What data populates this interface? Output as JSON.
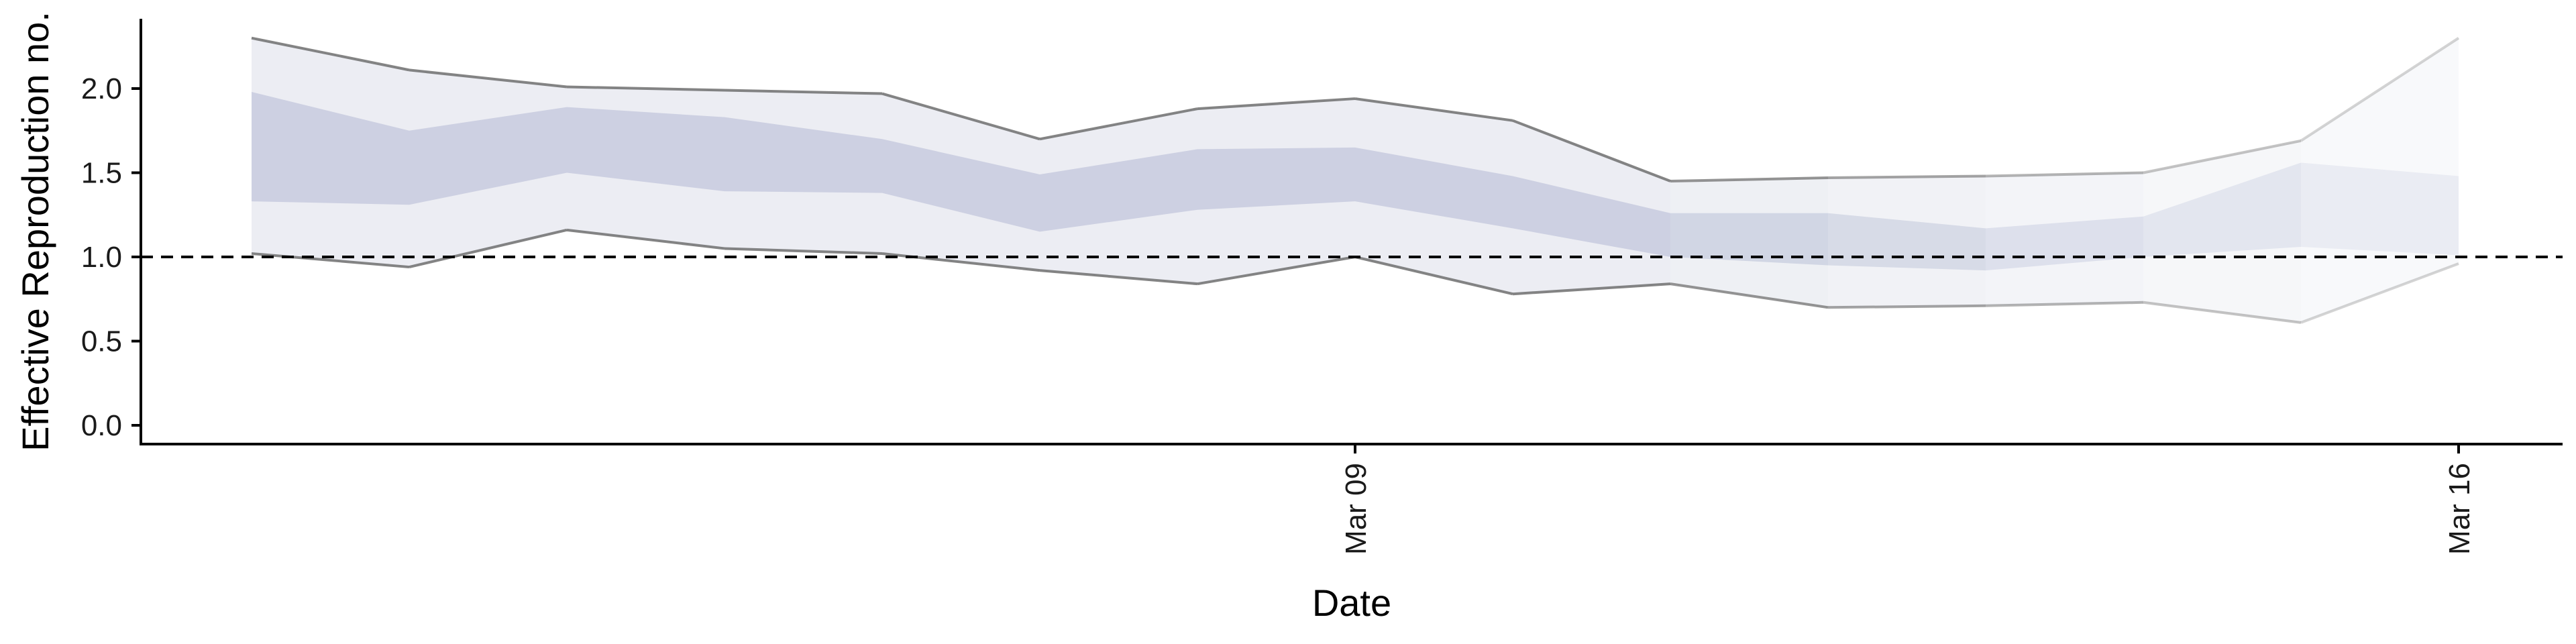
{
  "chart_data": {
    "type": "area",
    "title": "",
    "xlabel": "Date",
    "ylabel": "Effective Reproduction no.",
    "ylim": [
      -0.1,
      2.4
    ],
    "yticks": [
      0.0,
      0.5,
      1.0,
      1.5,
      2.0
    ],
    "ytick_labels": [
      "0.0",
      "0.5",
      "1.0",
      "1.5",
      "2.0"
    ],
    "xticks": [
      {
        "date": "2020-03-09",
        "label": "Mar 09"
      },
      {
        "date": "2020-03-16",
        "label": "Mar 16"
      }
    ],
    "reference_line": {
      "y": 1.0,
      "style": "dashed"
    },
    "dates": [
      "2020-03-02",
      "2020-03-03",
      "2020-03-04",
      "2020-03-05",
      "2020-03-06",
      "2020-03-07",
      "2020-03-08",
      "2020-03-09",
      "2020-03-10",
      "2020-03-11",
      "2020-03-12",
      "2020-03-13",
      "2020-03-14",
      "2020-03-15",
      "2020-03-16"
    ],
    "outer_band": {
      "upper": [
        2.3,
        2.11,
        2.01,
        1.99,
        1.97,
        1.7,
        1.88,
        1.94,
        1.81,
        1.45,
        1.47,
        1.48,
        1.5,
        1.69,
        2.3
      ],
      "lower": [
        1.02,
        0.94,
        1.16,
        1.05,
        1.02,
        0.92,
        0.84,
        1.0,
        0.78,
        0.84,
        0.7,
        0.71,
        0.73,
        0.61,
        0.96
      ]
    },
    "inner_band": {
      "upper": [
        1.98,
        1.75,
        1.89,
        1.83,
        1.7,
        1.49,
        1.64,
        1.65,
        1.48,
        1.26,
        1.26,
        1.17,
        1.24,
        1.56,
        1.48
      ],
      "lower": [
        1.33,
        1.31,
        1.5,
        1.39,
        1.38,
        1.15,
        1.28,
        1.33,
        1.17,
        1.0,
        0.95,
        0.92,
        1.0,
        1.06,
        1.01
      ]
    },
    "colors": {
      "inner_band": "#b9bfd6",
      "outer_band": "#dcdfe9",
      "band_edge": "#6e6e6e",
      "axis": "#000000",
      "reference_line": "#000000"
    },
    "grid": false,
    "legend": "none"
  }
}
